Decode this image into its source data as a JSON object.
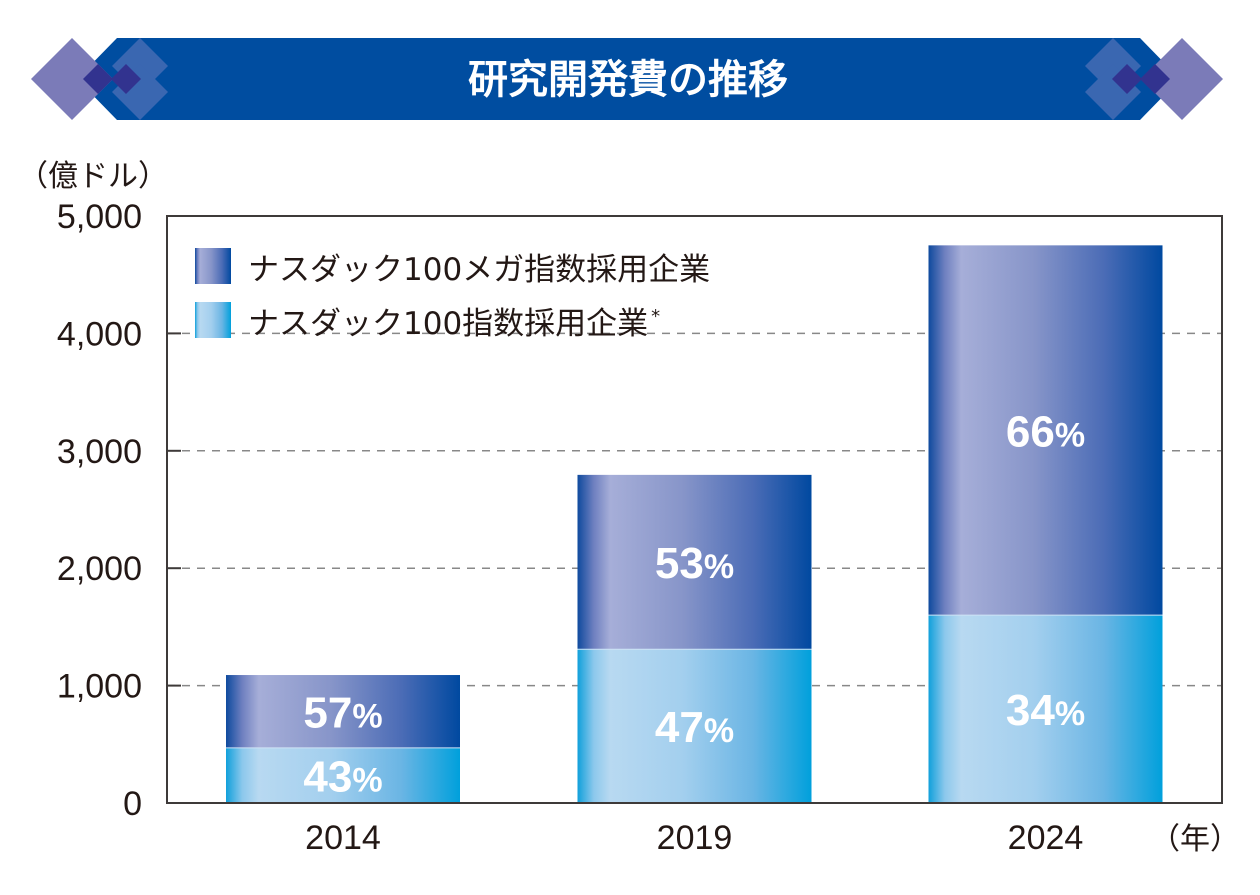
{
  "header": {
    "title": "研究開発費の推移",
    "decoration_icons": [
      "diamond-cluster-left-icon",
      "diamond-cluster-right-icon"
    ]
  },
  "colors": {
    "banner": "#004da0",
    "diamond_light": "#7b7bb8",
    "diamond_mid": "#3a67b1",
    "diamond_dark": "#32338f",
    "mega_series": [
      "#0e4a9e",
      "#a6aed8",
      "#4b6cb6",
      "#0049a0"
    ],
    "index_series": [
      "#10a0db",
      "#b6d8f0",
      "#74b8e5",
      "#00a0dc"
    ],
    "text": "#231815",
    "grid": "#888888"
  },
  "chart_data": {
    "type": "bar",
    "stacked": true,
    "title": "研究開発費の推移",
    "ylabel": "（億ドル）",
    "xlabel": "（年）",
    "ylim": [
      0,
      5000
    ],
    "yticks": [
      0,
      1000,
      2000,
      3000,
      4000,
      5000
    ],
    "ytick_labels": [
      "0",
      "1,000",
      "2,000",
      "3,000",
      "4,000",
      "5,000"
    ],
    "grid": "horizontal-dashed",
    "legend_position": "top-left",
    "categories": [
      "2014",
      "2019",
      "2024"
    ],
    "series": [
      {
        "name": "ナスダック100指数採用企業*",
        "values": [
          470,
          1310,
          1600
        ],
        "labels": [
          "43%",
          "47%",
          "34%"
        ]
      },
      {
        "name": "ナスダック100メガ指数採用企業",
        "values": [
          620,
          1485,
          3150
        ],
        "labels": [
          "57%",
          "53%",
          "66%"
        ]
      }
    ],
    "legend": [
      {
        "label": "ナスダック100メガ指数採用企業",
        "note": ""
      },
      {
        "label": "ナスダック100指数採用企業",
        "note": "*"
      }
    ]
  }
}
